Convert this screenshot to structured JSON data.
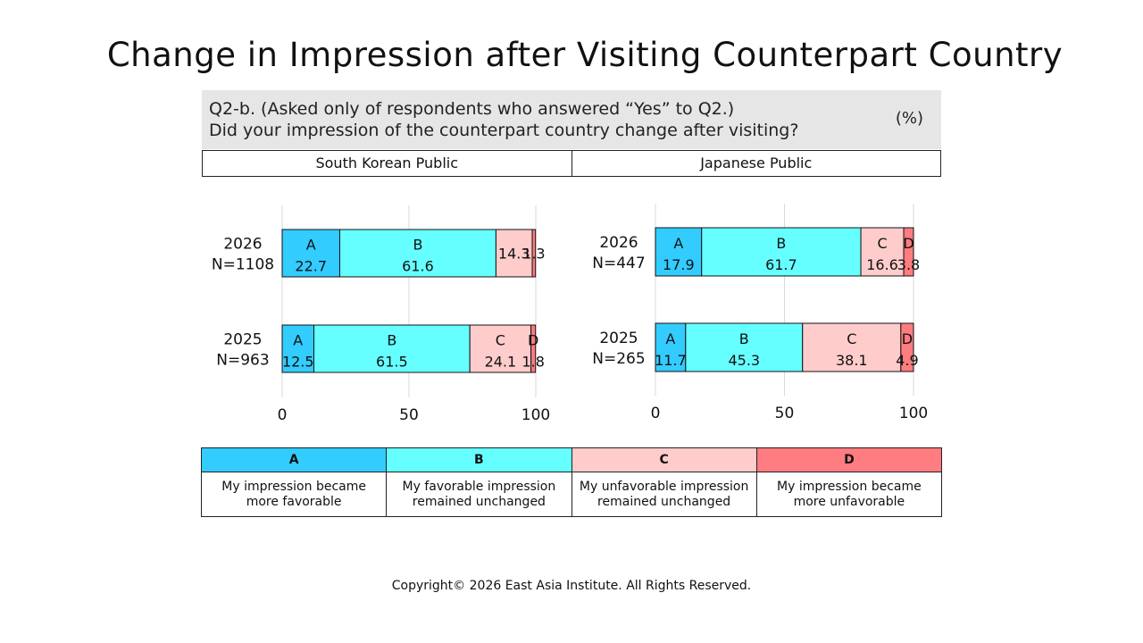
{
  "title": "Change in Impression after Visiting Counterpart Country",
  "question": {
    "line1": "Q2-b. (Asked only of respondents who answered “Yes” to Q2.)",
    "line2": "Did your impression of the counterpart country change after visiting?",
    "unit": "(%)"
  },
  "publics": [
    "South Korean Public",
    "Japanese Public"
  ],
  "colors": {
    "A": "#33ccff",
    "B": "#66ffff",
    "C": "#ffcccc",
    "D": "#ff7c80",
    "grid": "#d9d9d9",
    "axis": "#111111"
  },
  "chart_data": [
    {
      "type": "bar",
      "orientation": "horizontal",
      "stacked": true,
      "panel": "South Korean Public",
      "categories": [
        [
          "2026",
          "N=1108"
        ],
        [
          "2025",
          "N=963"
        ]
      ],
      "series": [
        {
          "name": "A",
          "values": [
            22.7,
            12.5
          ]
        },
        {
          "name": "B",
          "values": [
            61.6,
            61.5
          ]
        },
        {
          "name": "C",
          "values": [
            14.3,
            24.1
          ]
        },
        {
          "name": "D",
          "values": [
            1.3,
            1.8
          ]
        }
      ],
      "series_labels_shown": [
        [
          "A",
          "B",
          "",
          ""
        ],
        [
          "A",
          "B",
          "C",
          "D"
        ]
      ],
      "xlim": [
        0,
        100
      ],
      "xticks": [
        0,
        50,
        100
      ],
      "grid": true
    },
    {
      "type": "bar",
      "orientation": "horizontal",
      "stacked": true,
      "panel": "Japanese Public",
      "categories": [
        [
          "2026",
          "N=447"
        ],
        [
          "2025",
          "N=265"
        ]
      ],
      "series": [
        {
          "name": "A",
          "values": [
            17.9,
            11.7
          ]
        },
        {
          "name": "B",
          "values": [
            61.7,
            45.3
          ]
        },
        {
          "name": "C",
          "values": [
            16.6,
            38.1
          ]
        },
        {
          "name": "D",
          "values": [
            3.8,
            4.9
          ]
        }
      ],
      "series_labels_shown": [
        [
          "A",
          "B",
          "C",
          "D"
        ],
        [
          "A",
          "B",
          "C",
          "D"
        ]
      ],
      "xlim": [
        0,
        100
      ],
      "xticks": [
        0,
        50,
        100
      ],
      "grid": true
    }
  ],
  "legend": [
    {
      "key": "A",
      "label": "My impression became more favorable"
    },
    {
      "key": "B",
      "label": "My favorable impression remained unchanged"
    },
    {
      "key": "C",
      "label": "My unfavorable impression remained unchanged"
    },
    {
      "key": "D",
      "label": "My impression became more unfavorable"
    }
  ],
  "copyright": "Copyright© 2026 East Asia Institute. All Rights Reserved."
}
